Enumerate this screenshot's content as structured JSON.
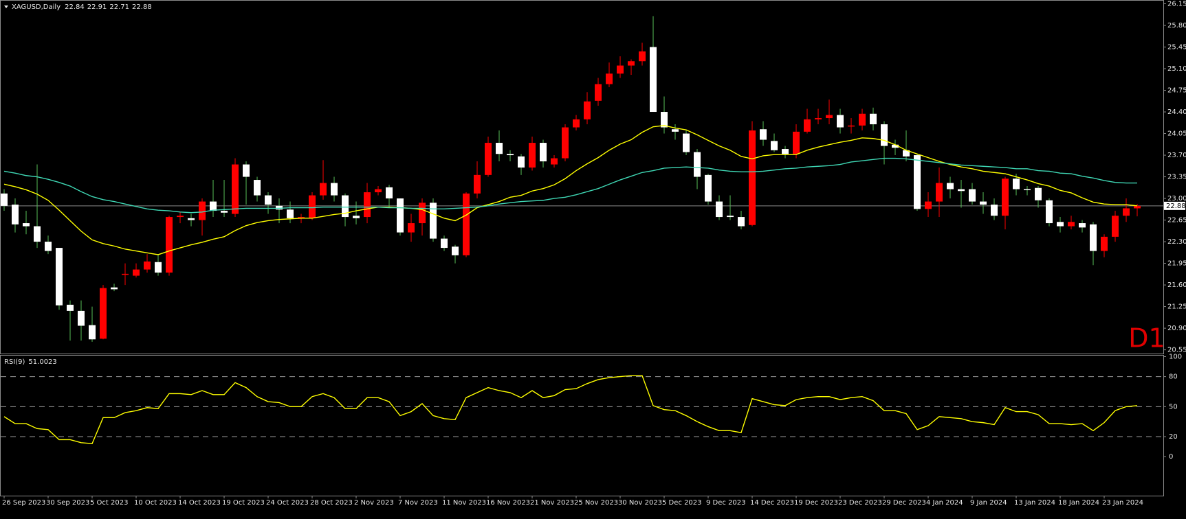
{
  "chart_data": {
    "type": "candlestick",
    "title": "XAGUSD,Daily",
    "timeframe": "D1",
    "timeframe_color": "#e00000",
    "up_color": "#ff0000",
    "down_color": "#ffffff",
    "up_wick_color": "#ff0000",
    "down_wick_color": "#58c058",
    "price_line_color": "#8a8a8a",
    "categories": [
      "26 Sep 2023",
      null,
      null,
      null,
      "30 Sep 2023",
      null,
      null,
      null,
      "5 Oct 2023",
      null,
      null,
      null,
      "10 Oct 2023",
      null,
      null,
      null,
      "14 Oct 2023",
      null,
      null,
      null,
      "19 Oct 2023",
      null,
      null,
      null,
      "24 Oct 2023",
      null,
      null,
      null,
      "28 Oct 2023",
      null,
      null,
      null,
      "2 Nov 2023",
      null,
      null,
      null,
      "7 Nov 2023",
      null,
      null,
      null,
      "11 Nov 2023",
      null,
      null,
      null,
      "16 Nov 2023",
      null,
      null,
      null,
      "21 Nov 2023",
      null,
      null,
      null,
      "25 Nov 2023",
      null,
      null,
      null,
      "30 Nov 2023",
      null,
      null,
      null,
      "5 Dec 2023",
      null,
      null,
      null,
      "9 Dec 2023",
      null,
      null,
      null,
      "14 Dec 2023",
      null,
      null,
      null,
      "19 Dec 2023",
      null,
      null,
      null,
      "23 Dec 2023",
      null,
      null,
      null,
      "29 Dec 2023",
      null,
      null,
      null,
      "4 Jan 2024",
      null,
      null,
      null,
      "9 Jan 2024",
      null,
      null,
      null,
      "13 Jan 2024",
      null,
      null,
      null,
      "18 Jan 2024",
      null,
      null,
      null,
      "23 Jan 2024",
      null,
      null,
      null
    ],
    "open": [
      23.08,
      22.9,
      22.6,
      22.55,
      22.3,
      22.2,
      21.28,
      21.18,
      20.95,
      20.73,
      21.56,
      21.77,
      21.75,
      21.85,
      21.97,
      21.8,
      22.7,
      22.68,
      22.65,
      22.95,
      22.8,
      22.75,
      23.55,
      23.3,
      23.05,
      22.88,
      22.82,
      22.68,
      22.68,
      23.05,
      23.25,
      23.05,
      22.72,
      22.7,
      23.1,
      23.18,
      23.0,
      22.45,
      22.6,
      22.93,
      22.35,
      22.22,
      22.08,
      23.08,
      23.38,
      23.9,
      23.72,
      23.68,
      23.5,
      23.9,
      23.55,
      23.65,
      24.15,
      24.28,
      24.58,
      24.85,
      25.02,
      25.15,
      25.22,
      25.45,
      24.4,
      24.12,
      24.05,
      23.75,
      23.38,
      22.95,
      22.72,
      22.7,
      22.57,
      24.12,
      23.93,
      23.8,
      23.72,
      24.08,
      24.28,
      24.3,
      24.35,
      24.17,
      24.18,
      24.37,
      24.2,
      23.87,
      23.78,
      23.7,
      22.83,
      22.95,
      23.25,
      23.15,
      23.15,
      22.95,
      22.9,
      22.72,
      23.32,
      23.15,
      23.17,
      22.97,
      22.62,
      22.55,
      22.6,
      22.58,
      22.15,
      22.38,
      22.72,
      22.84
    ],
    "high": [
      23.15,
      23.0,
      22.8,
      23.55,
      22.4,
      22.2,
      21.35,
      21.35,
      21.25,
      21.6,
      21.62,
      21.95,
      21.95,
      22.1,
      22.1,
      22.72,
      22.78,
      22.75,
      23.0,
      23.3,
      23.3,
      23.65,
      23.6,
      23.35,
      23.1,
      23.0,
      22.95,
      22.75,
      23.1,
      23.62,
      23.35,
      23.08,
      22.95,
      23.25,
      23.2,
      23.22,
      23.0,
      22.75,
      23.0,
      23.0,
      22.4,
      22.25,
      23.1,
      23.6,
      24.0,
      24.1,
      23.78,
      23.72,
      24.0,
      23.95,
      23.7,
      24.2,
      24.35,
      24.72,
      24.95,
      25.2,
      25.3,
      25.25,
      25.52,
      25.95,
      24.65,
      24.2,
      24.1,
      23.8,
      23.4,
      23.05,
      23.05,
      22.8,
      24.25,
      24.25,
      24.05,
      23.85,
      24.2,
      24.45,
      24.45,
      24.6,
      24.45,
      24.3,
      24.45,
      24.47,
      24.25,
      23.95,
      24.1,
      23.72,
      23.1,
      23.5,
      23.35,
      23.3,
      23.25,
      23.1,
      23.0,
      23.35,
      23.4,
      23.2,
      23.2,
      23.0,
      22.7,
      22.72,
      22.65,
      22.62,
      22.42,
      22.8,
      23.0,
      22.91
    ],
    "low": [
      22.8,
      22.45,
      22.42,
      22.2,
      22.1,
      21.2,
      20.7,
      20.7,
      20.68,
      20.72,
      21.5,
      21.6,
      21.72,
      21.8,
      21.75,
      21.75,
      22.6,
      22.55,
      22.4,
      22.7,
      22.7,
      22.7,
      22.9,
      22.95,
      22.75,
      22.6,
      22.6,
      22.6,
      22.65,
      22.98,
      22.95,
      22.55,
      22.58,
      22.6,
      23.05,
      22.85,
      22.4,
      22.3,
      22.4,
      22.3,
      22.15,
      21.95,
      22.05,
      23.0,
      23.35,
      23.6,
      23.6,
      23.38,
      23.45,
      23.5,
      23.5,
      23.6,
      24.1,
      24.2,
      24.5,
      24.8,
      24.95,
      25.0,
      25.15,
      24.4,
      24.05,
      23.95,
      23.7,
      23.15,
      22.9,
      22.65,
      22.65,
      22.5,
      22.55,
      23.85,
      23.75,
      23.65,
      23.65,
      24.05,
      24.2,
      24.2,
      24.05,
      24.05,
      24.1,
      24.1,
      23.55,
      23.7,
      23.6,
      22.8,
      22.7,
      22.7,
      23.0,
      22.85,
      22.9,
      22.75,
      22.65,
      22.5,
      23.05,
      23.05,
      22.85,
      22.55,
      22.45,
      22.5,
      22.45,
      21.92,
      22.05,
      22.3,
      22.62,
      22.71
    ],
    "close": [
      22.88,
      22.58,
      22.55,
      22.3,
      22.15,
      21.27,
      21.18,
      20.94,
      20.72,
      21.55,
      21.53,
      21.78,
      21.85,
      21.98,
      21.8,
      22.7,
      22.72,
      22.65,
      22.95,
      22.8,
      22.77,
      23.55,
      23.35,
      23.05,
      22.9,
      22.82,
      22.68,
      22.7,
      23.05,
      23.25,
      23.05,
      22.7,
      22.68,
      23.1,
      23.15,
      23.0,
      22.45,
      22.6,
      22.93,
      22.35,
      22.2,
      22.08,
      23.08,
      23.38,
      23.9,
      23.72,
      23.7,
      23.5,
      23.9,
      23.6,
      23.65,
      24.15,
      24.28,
      24.57,
      24.85,
      25.02,
      25.15,
      25.22,
      25.38,
      24.4,
      24.15,
      24.08,
      23.75,
      23.35,
      22.95,
      22.7,
      22.7,
      22.55,
      24.1,
      23.95,
      23.78,
      23.72,
      24.08,
      24.28,
      24.3,
      24.35,
      24.15,
      24.18,
      24.37,
      24.2,
      23.85,
      23.82,
      23.68,
      22.83,
      22.95,
      23.25,
      23.15,
      23.12,
      22.95,
      22.9,
      22.72,
      23.32,
      23.15,
      23.14,
      22.97,
      22.6,
      22.55,
      22.62,
      22.53,
      22.15,
      22.38,
      22.72,
      22.84,
      22.88
    ],
    "overlays": [
      {
        "color": "#ffff00",
        "values": [
          23.23,
          23.19,
          23.14,
          23.07,
          22.97,
          22.81,
          22.64,
          22.47,
          22.33,
          22.27,
          22.23,
          22.18,
          22.15,
          22.12,
          22.09,
          22.15,
          22.2,
          22.25,
          22.29,
          22.34,
          22.38,
          22.48,
          22.56,
          22.61,
          22.64,
          22.66,
          22.67,
          22.68,
          22.68,
          22.71,
          22.74,
          22.76,
          22.8,
          22.83,
          22.86,
          22.86,
          22.85,
          22.84,
          22.82,
          22.75,
          22.68,
          22.64,
          22.73,
          22.85,
          22.9,
          22.95,
          23.02,
          23.05,
          23.12,
          23.16,
          23.22,
          23.32,
          23.45,
          23.56,
          23.66,
          23.78,
          23.88,
          23.95,
          24.07,
          24.16,
          24.18,
          24.14,
          24.11,
          24.03,
          23.94,
          23.85,
          23.78,
          23.68,
          23.64,
          23.69,
          23.71,
          23.71,
          23.71,
          23.78,
          23.83,
          23.87,
          23.91,
          23.94,
          23.98,
          23.97,
          23.94,
          23.87,
          23.78,
          23.72,
          23.66,
          23.6,
          23.55,
          23.51,
          23.48,
          23.44,
          23.42,
          23.4,
          23.35,
          23.3,
          23.24,
          23.2,
          23.13,
          23.09,
          23.01,
          22.94,
          22.91,
          22.9,
          22.9,
          22.88
        ]
      },
      {
        "color": "#3fd8b5",
        "values": [
          23.44,
          23.41,
          23.37,
          23.35,
          23.31,
          23.26,
          23.2,
          23.11,
          23.03,
          22.98,
          22.95,
          22.91,
          22.87,
          22.83,
          22.81,
          22.8,
          22.78,
          22.77,
          22.78,
          22.81,
          22.82,
          22.83,
          22.84,
          22.84,
          22.84,
          22.84,
          22.85,
          22.85,
          22.85,
          22.86,
          22.86,
          22.86,
          22.86,
          22.86,
          22.86,
          22.85,
          22.85,
          22.84,
          22.84,
          22.83,
          22.83,
          22.84,
          22.85,
          22.86,
          22.88,
          22.91,
          22.93,
          22.95,
          22.96,
          22.97,
          23.0,
          23.02,
          23.06,
          23.11,
          23.16,
          23.23,
          23.3,
          23.36,
          23.42,
          23.45,
          23.49,
          23.5,
          23.51,
          23.5,
          23.49,
          23.46,
          23.44,
          23.43,
          23.43,
          23.44,
          23.46,
          23.48,
          23.49,
          23.51,
          23.52,
          23.53,
          23.55,
          23.59,
          23.61,
          23.63,
          23.65,
          23.65,
          23.64,
          23.62,
          23.6,
          23.58,
          23.56,
          23.54,
          23.53,
          23.52,
          23.51,
          23.5,
          23.48,
          23.48,
          23.45,
          23.44,
          23.41,
          23.4,
          23.36,
          23.33,
          23.29,
          23.26,
          23.25,
          23.25
        ]
      }
    ],
    "ylim": [
      20.49,
      26.2
    ],
    "yticks": [
      26.15,
      {
        "value": 25.8,
        "label": "25.80"
      },
      25.45,
      {
        "value": 25.1,
        "label": "25.10"
      },
      24.75,
      {
        "value": 24.4,
        "label": "24.40"
      },
      24.05,
      {
        "value": 23.7,
        "label": "23.70"
      },
      23.35,
      {
        "value": 23.0,
        "label": "23.00"
      },
      22.65,
      {
        "value": 22.3,
        "label": "22.30"
      },
      21.95,
      {
        "value": 21.6,
        "label": "21.60"
      },
      21.25,
      {
        "value": 20.9,
        "label": "20.90"
      },
      20.55
    ],
    "rsi": {
      "label": "RSI(9)",
      "color": "#ffff00",
      "level_color": "#9a9a9a",
      "values": [
        40,
        33,
        33,
        28,
        27,
        17,
        17,
        14,
        13,
        39,
        39,
        44,
        46,
        49,
        48,
        63,
        63,
        62,
        66,
        62,
        62,
        74,
        69,
        60,
        55,
        54,
        50,
        50,
        60,
        63,
        59,
        48,
        48,
        59,
        59,
        55,
        41,
        45,
        53,
        41,
        38,
        37,
        59,
        64,
        69,
        66,
        64,
        59,
        66,
        59,
        61,
        67,
        68,
        73,
        77,
        79,
        80,
        81,
        81,
        51,
        47,
        46,
        41,
        35,
        30,
        26,
        26,
        24,
        58,
        55,
        52,
        51,
        57,
        59,
        60,
        60,
        57,
        59,
        60,
        56,
        46,
        46,
        43,
        27,
        31,
        40,
        39,
        38,
        35,
        34,
        32,
        49,
        45,
        45,
        42,
        33,
        33,
        32,
        33,
        26,
        34,
        46,
        50,
        51.0023
      ],
      "ylim": [
        -39,
        101
      ],
      "yticks": [
        100,
        80,
        50,
        20,
        0
      ],
      "levels": [
        80,
        50,
        20
      ]
    }
  }
}
